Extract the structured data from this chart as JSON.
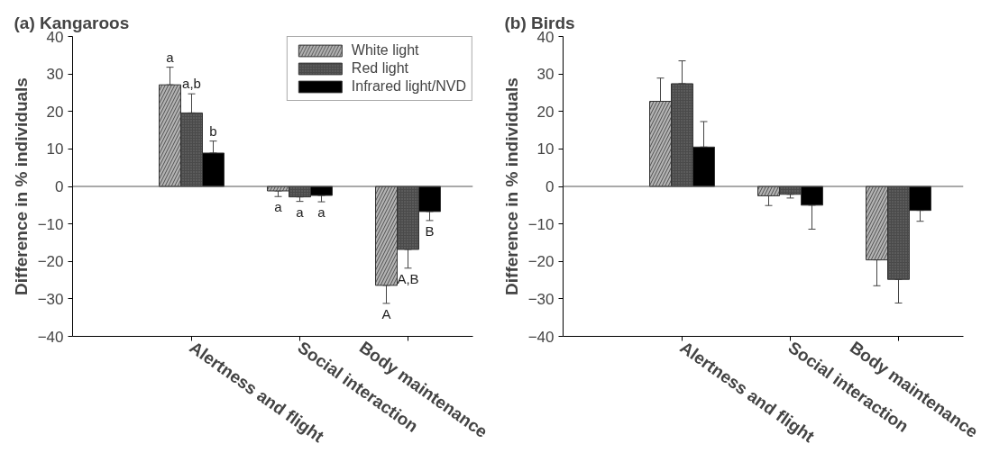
{
  "chart_data": [
    {
      "type": "bar",
      "title": "(a) Kangaroos",
      "ylabel": "Difference in % individuals",
      "categories": [
        "Alertness and flight",
        "Social interaction",
        "Body maintenance"
      ],
      "series": [
        {
          "name": "White light",
          "color": "#b4b4b4",
          "values": [
            27.1,
            -1.2,
            -26.4
          ],
          "errors": [
            [
              27.1,
              31.8
            ],
            [
              -2.7,
              -1.2
            ],
            [
              -31.2,
              -26.4
            ]
          ],
          "value_labels": [
            "a",
            "a",
            "A"
          ]
        },
        {
          "name": "Red light",
          "color": "#4a4a4a",
          "values": [
            19.6,
            -2.8,
            -16.8
          ],
          "errors": [
            [
              19.6,
              24.7
            ],
            [
              -4.0,
              -2.8
            ],
            [
              -21.8,
              -16.8
            ]
          ],
          "value_labels": [
            "a,b",
            "a",
            "A,B"
          ]
        },
        {
          "name": "Infrared light/NVD",
          "color": "#000000",
          "values": [
            8.9,
            -2.4,
            -6.7
          ],
          "errors": [
            [
              8.9,
              12.1
            ],
            [
              -4.1,
              -2.4
            ],
            [
              -9.1,
              -6.7
            ]
          ],
          "value_labels": [
            "b",
            "a",
            "B"
          ]
        }
      ],
      "ylim": [
        -40,
        40
      ],
      "yticks": [
        -40,
        -30,
        -20,
        -10,
        0,
        10,
        20,
        30,
        40
      ],
      "grid": false,
      "legend": "top right",
      "ref_lines": [
        {
          "axis": "y",
          "value": 0
        }
      ]
    },
    {
      "type": "bar",
      "title": "(b) Birds",
      "ylabel": "Difference in % individuals",
      "categories": [
        "Alertness and flight",
        "Social interaction",
        "Body maintenance"
      ],
      "series": [
        {
          "color": "#b4b4b4",
          "values": [
            22.7,
            -2.5,
            -19.6
          ],
          "errors": [
            [
              22.7,
              28.9
            ],
            [
              -5.1,
              -2.5
            ],
            [
              -26.5,
              -19.6
            ]
          ]
        },
        {
          "color": "#4a4a4a",
          "values": [
            27.4,
            -2.1,
            -24.8
          ],
          "errors": [
            [
              27.4,
              33.5
            ],
            [
              -3.1,
              -2.1
            ],
            [
              -31.1,
              -24.8
            ]
          ]
        },
        {
          "color": "#000000",
          "values": [
            10.5,
            -5.0,
            -6.4
          ],
          "errors": [
            [
              10.5,
              17.3
            ],
            [
              -11.4,
              -5.0
            ],
            [
              -9.3,
              -6.4
            ]
          ]
        }
      ],
      "ylim": [
        -40,
        40
      ],
      "yticks": [
        -40,
        -30,
        -20,
        -10,
        0,
        10,
        20,
        30,
        40
      ],
      "grid": false,
      "legend": false,
      "ref_lines": [
        {
          "axis": "y",
          "value": 0
        }
      ]
    }
  ]
}
